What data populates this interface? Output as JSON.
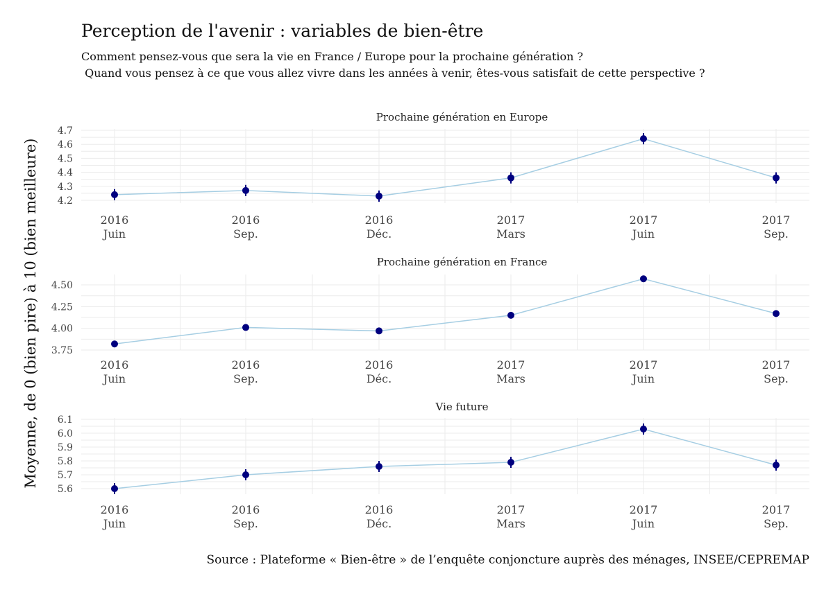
{
  "title": "Perception de l'avenir : variables de bien-être",
  "subtitle": "Comment pensez-vous que sera la vie en France / Europe pour la prochaine génération ?\n Quand vous pensez à ce que vous allez vivre dans les années à venir, êtes-vous satisfait de cette perspective ?",
  "ylabel": "Moyenne, de 0 (bien pire) à 10 (bien meilleure)",
  "source": "Source : Plateforme « Bien-être » de l’enquête conjoncture auprès des ménages, INSEE/CEPREMAP",
  "colors": {
    "line": "#a6cee3",
    "point": "#00007f",
    "grid": "#ebebeb"
  },
  "chart_data": [
    {
      "type": "line",
      "title": "Prochaine génération en Europe",
      "categories": [
        [
          "2016",
          "Juin"
        ],
        [
          "2016",
          "Sep."
        ],
        [
          "2016",
          "Déc."
        ],
        [
          "2017",
          "Mars"
        ],
        [
          "2017",
          "Juin"
        ],
        [
          "2017",
          "Sep."
        ]
      ],
      "values": [
        4.24,
        4.27,
        4.23,
        4.36,
        4.64,
        4.36
      ],
      "error": [
        0.04,
        0.04,
        0.04,
        0.04,
        0.04,
        0.04
      ],
      "yticks": [
        "4.2",
        "4.3",
        "4.4",
        "4.5",
        "4.6",
        "4.7"
      ],
      "ylim": [
        4.18,
        4.71
      ],
      "grid": true
    },
    {
      "type": "line",
      "title": "Prochaine génération en France",
      "categories": [
        [
          "2016",
          "Juin"
        ],
        [
          "2016",
          "Sep."
        ],
        [
          "2016",
          "Déc."
        ],
        [
          "2017",
          "Mars"
        ],
        [
          "2017",
          "Juin"
        ],
        [
          "2017",
          "Sep."
        ]
      ],
      "values": [
        3.82,
        4.01,
        3.97,
        4.15,
        4.57,
        4.17
      ],
      "error": [
        0.035,
        0.035,
        0.035,
        0.035,
        0.035,
        0.035
      ],
      "yticks": [
        "3.75",
        "4.00",
        "4.25",
        "4.50"
      ],
      "ylim": [
        3.75,
        4.62
      ],
      "grid": true
    },
    {
      "type": "line",
      "title": "Vie future",
      "categories": [
        [
          "2016",
          "Juin"
        ],
        [
          "2016",
          "Sep."
        ],
        [
          "2016",
          "Déc."
        ],
        [
          "2017",
          "Mars"
        ],
        [
          "2017",
          "Juin"
        ],
        [
          "2017",
          "Sep."
        ]
      ],
      "values": [
        5.6,
        5.7,
        5.76,
        5.79,
        6.03,
        5.77
      ],
      "error": [
        0.04,
        0.04,
        0.04,
        0.04,
        0.04,
        0.04
      ],
      "yticks": [
        "5.6",
        "5.7",
        "5.8",
        "5.9",
        "6.0",
        "6.1"
      ],
      "ylim": [
        5.56,
        6.11
      ],
      "grid": true
    }
  ]
}
